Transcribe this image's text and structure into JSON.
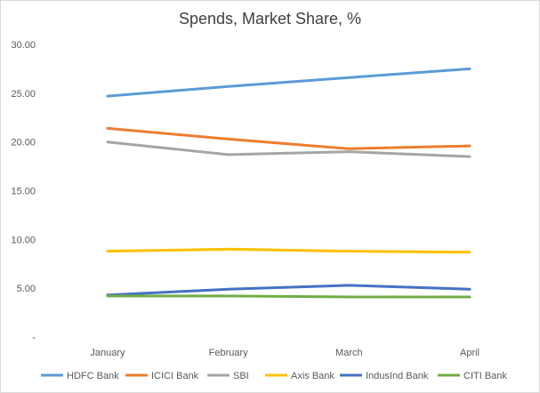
{
  "chart_data": {
    "type": "line",
    "title": "Spends, Market Share, %",
    "categories": [
      "January",
      "February",
      "March",
      "April"
    ],
    "ylim": [
      0,
      30
    ],
    "yticks": [
      0,
      5,
      10,
      15,
      20,
      25,
      30
    ],
    "ytick_labels": [
      "-",
      "5.00",
      "10.00",
      "15.00",
      "20.00",
      "25.00",
      "30.00"
    ],
    "grid": false,
    "legend_position": "bottom",
    "series": [
      {
        "name": "HDFC Bank",
        "color": "#5b9bd5",
        "values": [
          24.7,
          25.7,
          26.6,
          27.5
        ]
      },
      {
        "name": "ICICI Bank",
        "color": "#ed7d31",
        "values": [
          21.4,
          20.3,
          19.3,
          19.6
        ]
      },
      {
        "name": "SBI",
        "color": "#a5a5a5",
        "values": [
          20.0,
          18.7,
          19.0,
          18.5
        ]
      },
      {
        "name": "Axis Bank",
        "color": "#ffc000",
        "values": [
          8.8,
          9.0,
          8.8,
          8.7
        ]
      },
      {
        "name": "IndusInd Bank",
        "color": "#4472c4",
        "values": [
          4.3,
          4.9,
          5.3,
          4.9
        ]
      },
      {
        "name": "CITI Bank",
        "color": "#70ad47",
        "values": [
          4.2,
          4.2,
          4.1,
          4.1
        ]
      }
    ]
  }
}
